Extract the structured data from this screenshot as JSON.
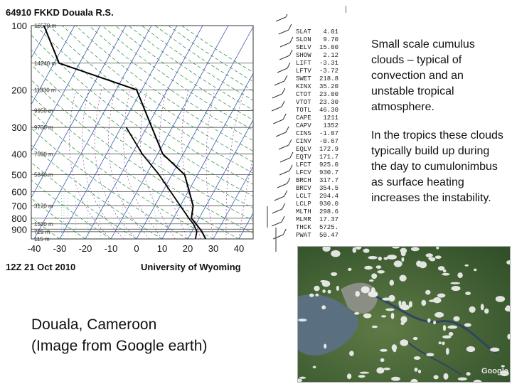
{
  "skewt": {
    "station": "64910 FKKD Douala R.S.",
    "run_time": "12Z 21 Oct 2010",
    "source": "University of Wyoming",
    "pressure_ticks": [
      "100",
      "200",
      "300",
      "400",
      "500",
      "600",
      "700",
      "800",
      "900"
    ],
    "temp_ticks": [
      "-40",
      "-30",
      "-20",
      "-10",
      "0",
      "10",
      "20",
      "30",
      "40"
    ],
    "height_labels": [
      "16570 m",
      "14240 m",
      "11330 m",
      "9950 m",
      "9700 m",
      "7590 m",
      "5840 m",
      "3170 m",
      "1530 m",
      "729 m",
      "115 m"
    ]
  },
  "chart_data": {
    "type": "line",
    "title": "64910 FKKD Douala R.S.",
    "xlabel": "",
    "ylabel": "",
    "x_range": [
      -40,
      40
    ],
    "y_range": [
      1000,
      100
    ],
    "y_scale": "log",
    "series": [
      {
        "points": [
          [
            27,
            1000
          ],
          [
            24,
            925
          ],
          [
            20,
            850
          ],
          [
            17,
            800
          ],
          [
            15,
            700
          ],
          [
            5,
            500
          ],
          [
            -8,
            400
          ],
          [
            -18,
            300
          ],
          [
            -32,
            200
          ],
          [
            -68,
            150
          ],
          [
            -82,
            100
          ]
        ]
      },
      {
        "points": [
          [
            23,
            1000
          ],
          [
            22,
            925
          ],
          [
            19,
            850
          ],
          [
            16,
            800
          ],
          [
            10,
            700
          ],
          [
            -5,
            500
          ],
          [
            -16,
            400
          ],
          [
            -28,
            300
          ]
        ]
      }
    ]
  },
  "indices": [
    [
      "SLAT",
      "4.01"
    ],
    [
      "SLON",
      "9.70"
    ],
    [
      "SELV",
      "15.00"
    ],
    [
      "SHOW",
      "2.12"
    ],
    [
      "LIFT",
      "-3.31"
    ],
    [
      "LFTV",
      "-3.72"
    ],
    [
      "SWET",
      "218.8"
    ],
    [
      "KINX",
      "35.20"
    ],
    [
      "CTOT",
      "23.00"
    ],
    [
      "VTOT",
      "23.30"
    ],
    [
      "TOTL",
      "46.30"
    ],
    [
      "CAPE",
      "1211"
    ],
    [
      "CAPV",
      "1352"
    ],
    [
      "CINS",
      "-1.07"
    ],
    [
      "CINV",
      "-0.67"
    ],
    [
      "EQLV",
      "172.9"
    ],
    [
      "EQTV",
      "171.7"
    ],
    [
      "LFCT",
      "925.0"
    ],
    [
      "LFCV",
      "930.7"
    ],
    [
      "BRCH",
      "317.7"
    ],
    [
      "BRCV",
      "354.5"
    ],
    [
      "LCLT",
      "294.4"
    ],
    [
      "LCLP",
      "930.0"
    ],
    [
      "MLTH",
      "298.6"
    ],
    [
      "MLMR",
      "17.37"
    ],
    [
      "THCK",
      "5725."
    ],
    [
      "PWAT",
      "50.47"
    ]
  ],
  "description": {
    "para1": "Small scale cumulus clouds – typical of convection and an unstable tropical atmosphere.",
    "para2": "In the tropics these clouds typically build up during the day to cumulonimbus as surface heating increases the instability."
  },
  "location": {
    "line1": "Douala, Cameroon",
    "line2": "(Image from Google earth)"
  },
  "satellite": {
    "credit": "Google"
  },
  "colors": {
    "isotherm": "#2244aa",
    "dry_adiabat": "#1d8a3a",
    "moist_adiabat": "#8a2a8a",
    "mixing_ratio": "#2a9a9a",
    "profile": "#000000"
  }
}
